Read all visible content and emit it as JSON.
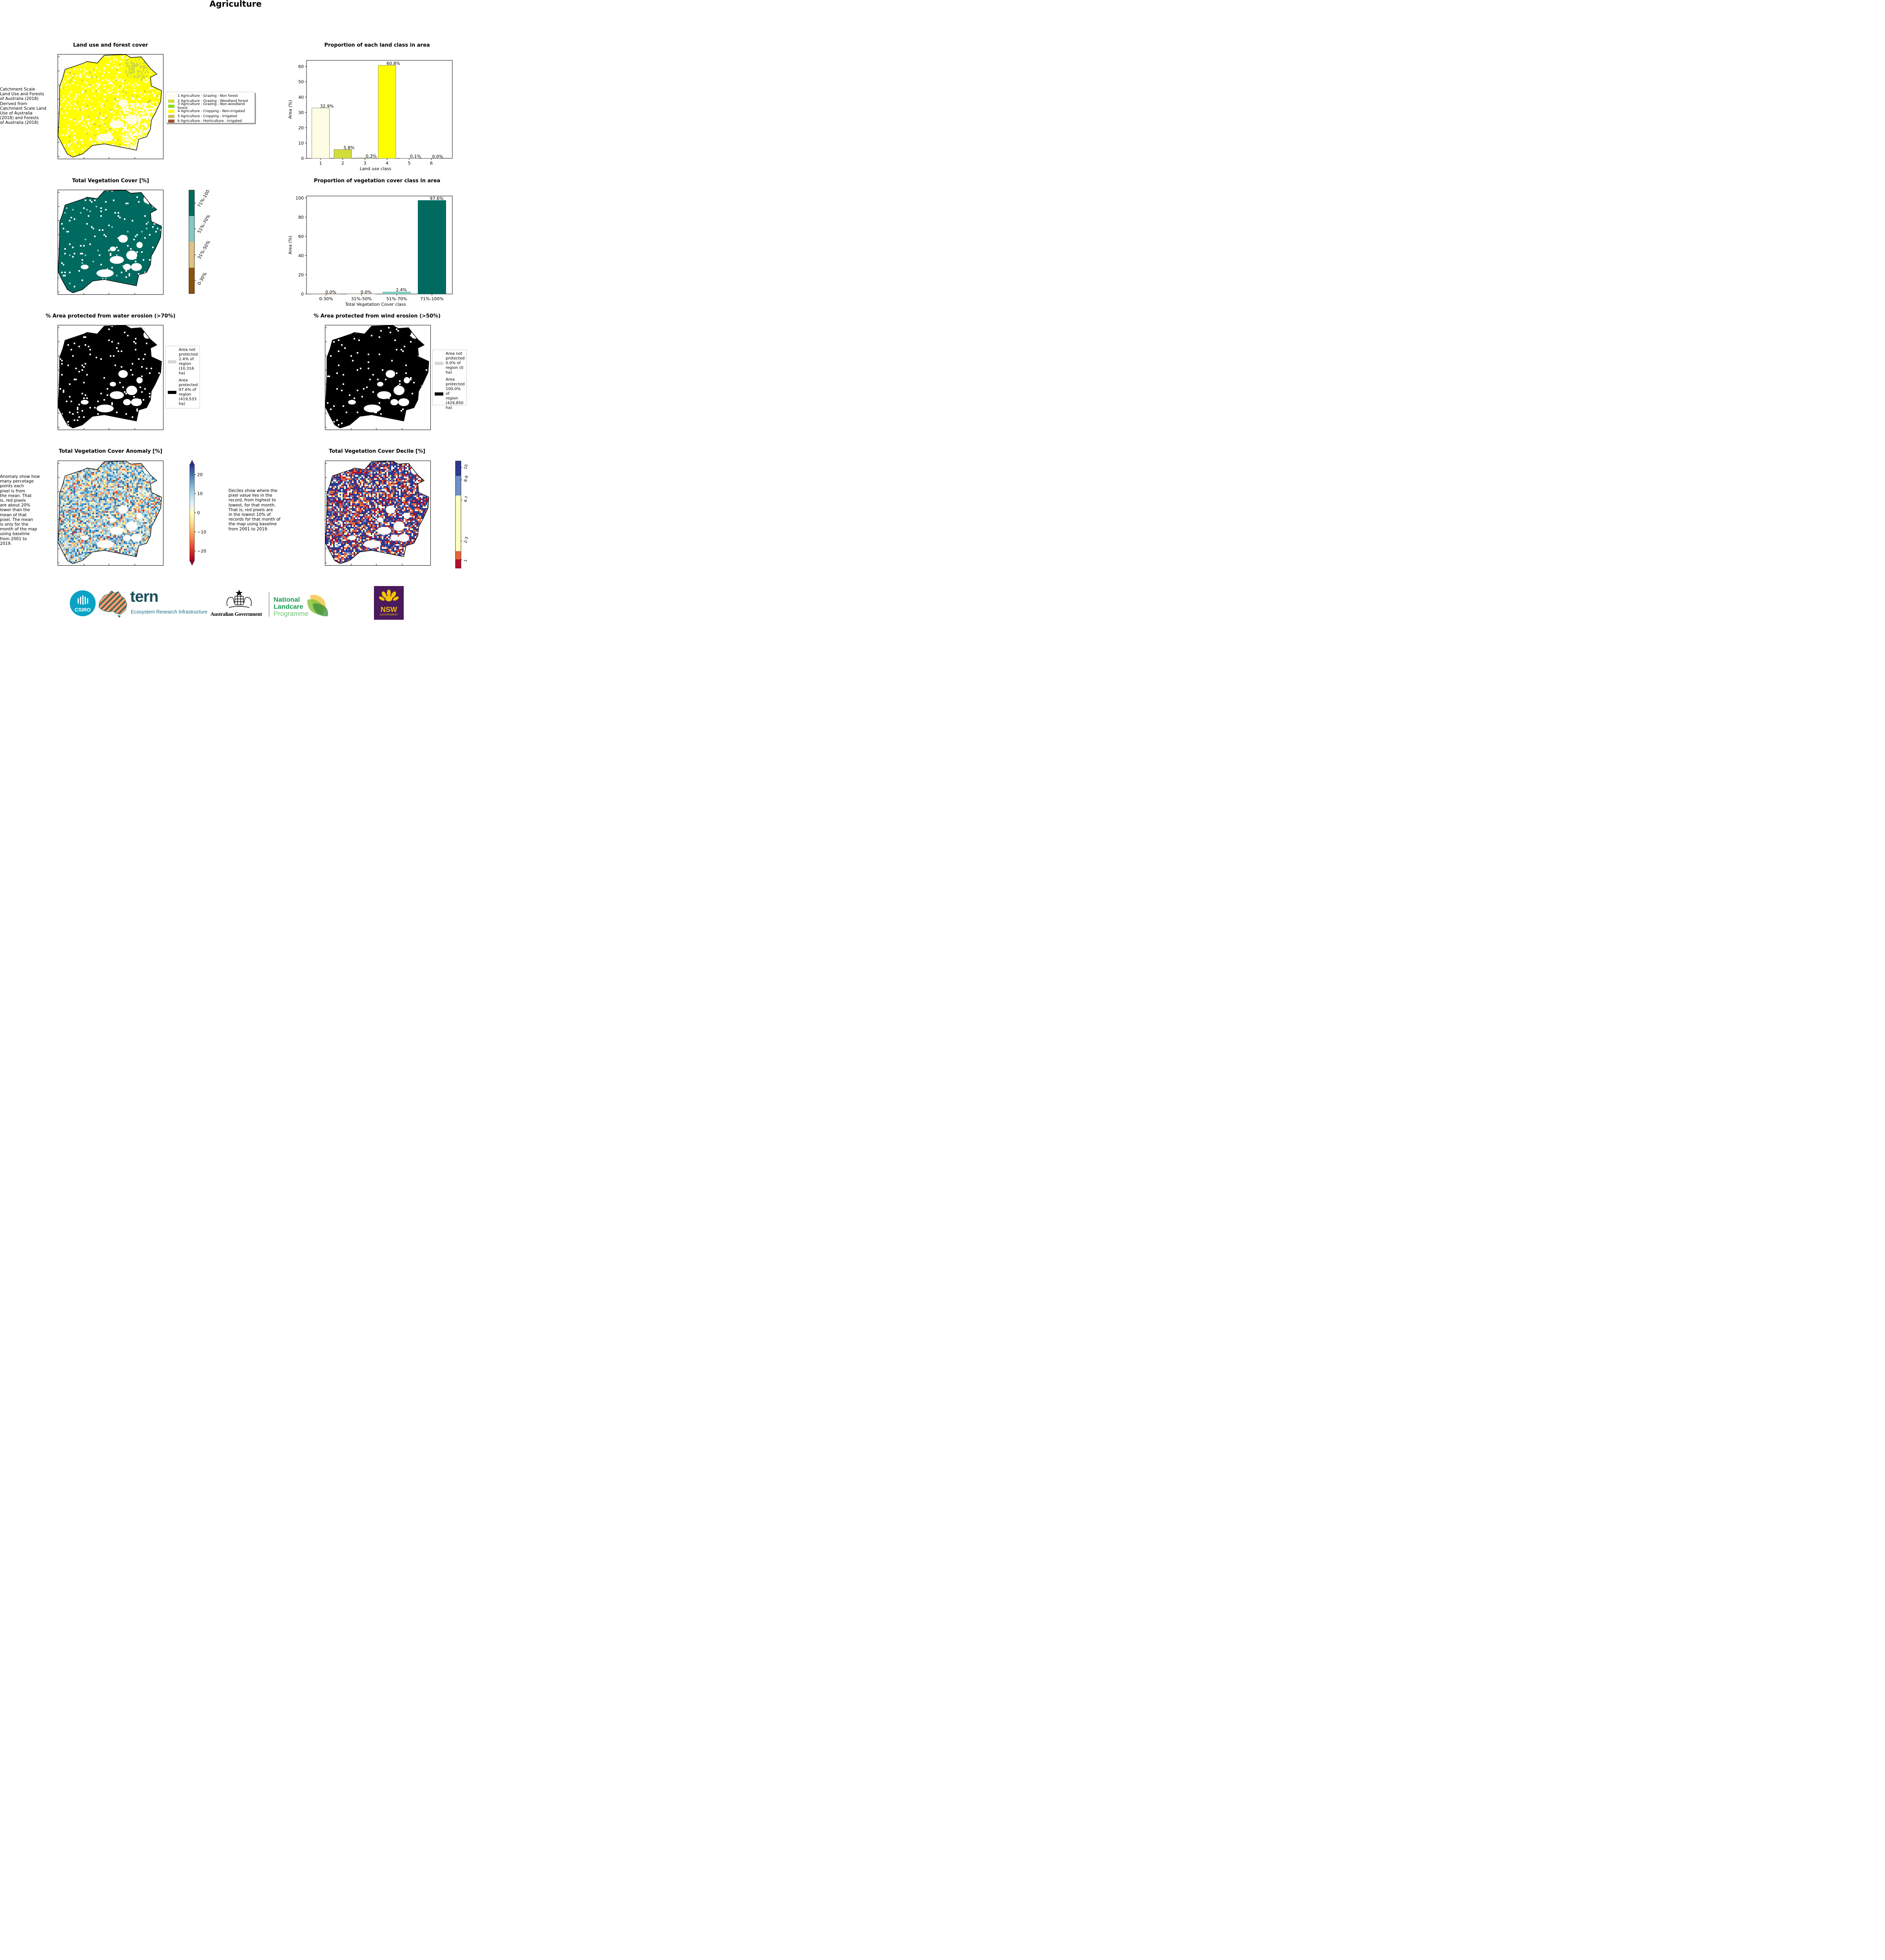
{
  "page": {
    "title": "Agriculture",
    "landuse_note": "Catchment Scale\nLand Use and Forests\nof Australia (2018)\nDerived from\nCatchment Scale Land\nUse of Australia\n(2018) and Forests\nof Australia (2018)",
    "anomaly_note": "Anomaly show how\nmany percetage\npoints each\npixel is from\nthe mean. That\nis, red pixels\nare about 20%\nlower than the\nmean of that\npixel. The mean\nis only for the\nmonth of the map\nusing baseline\nfrom 2001 to\n2019.",
    "decile_note": "Deciles show where the\npixel value lies in the\nrecord, from highest to\nlowest, for that month.\nThat is, red pixels are\nin the lowest 10% of\nrecords for that month of\nthe map using baseline\nfrom 2001 to 2019."
  },
  "maps": {
    "landuse": {
      "title": "Land use and forest cover",
      "legend": [
        {
          "label": "1 Agriculture - Grazing - Non forest",
          "color": "#fdfde4"
        },
        {
          "label": "2 Agriculture - Grazing - Woodland forest",
          "color": "#d2dc3c"
        },
        {
          "label": "3 Agriculture - Grazing - Non-woodland forest",
          "color": "#8ed822"
        },
        {
          "label": "4 Agriculture - Cropping - Non-irrigated",
          "color": "#ffff00"
        },
        {
          "label": "5 Agriculture - Cropping - Irrigated",
          "color": "#cdbd54"
        },
        {
          "label": "6 Agriculture - Horticulture - Irrigated",
          "color": "#a0522d"
        }
      ]
    },
    "tvc": {
      "title": "Total Vegetation Cover [%]",
      "colorbar": [
        {
          "label": "71%-100%",
          "color": "#006a60"
        },
        {
          "label": "51%-70%",
          "color": "#7ecdbf"
        },
        {
          "label": "31%-50%",
          "color": "#dfc27d"
        },
        {
          "label": "0-30%",
          "color": "#8c510a"
        }
      ]
    },
    "water": {
      "title": "% Area protected from water erosion (>70%)",
      "legend": [
        {
          "label": "Area not\nprotected\n2.4% of\nregion\n(10,316\nha)",
          "color": "#d6d6d6"
        },
        {
          "label": "Area\nprotected\n97.6% of\nregion\n(419,533\nha)",
          "color": "#000000"
        }
      ]
    },
    "wind": {
      "title": "% Area protected from wind erosion (>50%)",
      "legend": [
        {
          "label": "Area not\nprotected\n0.0% of\nregion (0\nha)",
          "color": "#d6d6d6"
        },
        {
          "label": "Area\nprotected\n100.0% of\nregion\n(429,850\nha)",
          "color": "#000000"
        }
      ]
    },
    "anomaly": {
      "title": "Total Vegetation Cover Anomaly [%]",
      "ticks": [
        "20",
        "10",
        "0",
        "−10",
        "−20"
      ]
    },
    "decile": {
      "title": "Total Vegetation Cover Decile [%]",
      "ticks": [
        "10",
        "8-9",
        "4-7",
        "2-3",
        "1"
      ],
      "colors": {
        "d10": "#2b3990",
        "d89": "#6e8fc8",
        "d47": "#ffffc0",
        "d23": "#e8653a",
        "d1": "#b0102a"
      }
    }
  },
  "logos": {
    "csiro": "CSIRO",
    "tern": "tern",
    "tern_sub": "Ecosystem Research Infrastructure",
    "gov": "Australian Government",
    "nlp1": "National",
    "nlp2": "Landcare",
    "nlp3": "Programme",
    "nsw": "NSW",
    "nsw_sub": "GOVERNMENT"
  },
  "chart_data": [
    {
      "type": "bar",
      "title": "Proportion of each land class in area",
      "xlabel": "Land use class",
      "ylabel": "Area (%)",
      "categories": [
        "1",
        "2",
        "3",
        "4",
        "5",
        "6"
      ],
      "values": [
        32.9,
        5.8,
        0.3,
        60.8,
        0.1,
        0.0
      ],
      "labels": [
        "32.9%",
        "5.8%",
        "0.3%",
        "60.8%",
        "0.1%",
        "0.0%"
      ],
      "colors": [
        "#fdfde4",
        "#d2dc3c",
        "#8ed822",
        "#ffff00",
        "#cdbd54",
        "#a0522d"
      ],
      "ylim": [
        0,
        64
      ],
      "yticks": [
        0,
        10,
        20,
        30,
        40,
        50,
        60
      ],
      "grid": false
    },
    {
      "type": "bar",
      "title": "Proportion of vegetation cover class in area",
      "xlabel": "Total Vegetation Cover class",
      "ylabel": "Area (%)",
      "categories": [
        "0-30%",
        "31%-50%",
        "51%-70%",
        "71%-100%"
      ],
      "values": [
        0.0,
        0.0,
        2.4,
        97.6
      ],
      "labels": [
        "0.0%",
        "0.0%",
        "2.4%",
        "97.6%"
      ],
      "colors": [
        "#8c510a",
        "#dfc27d",
        "#7ecdbf",
        "#006a60"
      ],
      "ylim": [
        0,
        102
      ],
      "yticks": [
        0,
        20,
        40,
        60,
        80,
        100
      ],
      "grid": false
    }
  ]
}
